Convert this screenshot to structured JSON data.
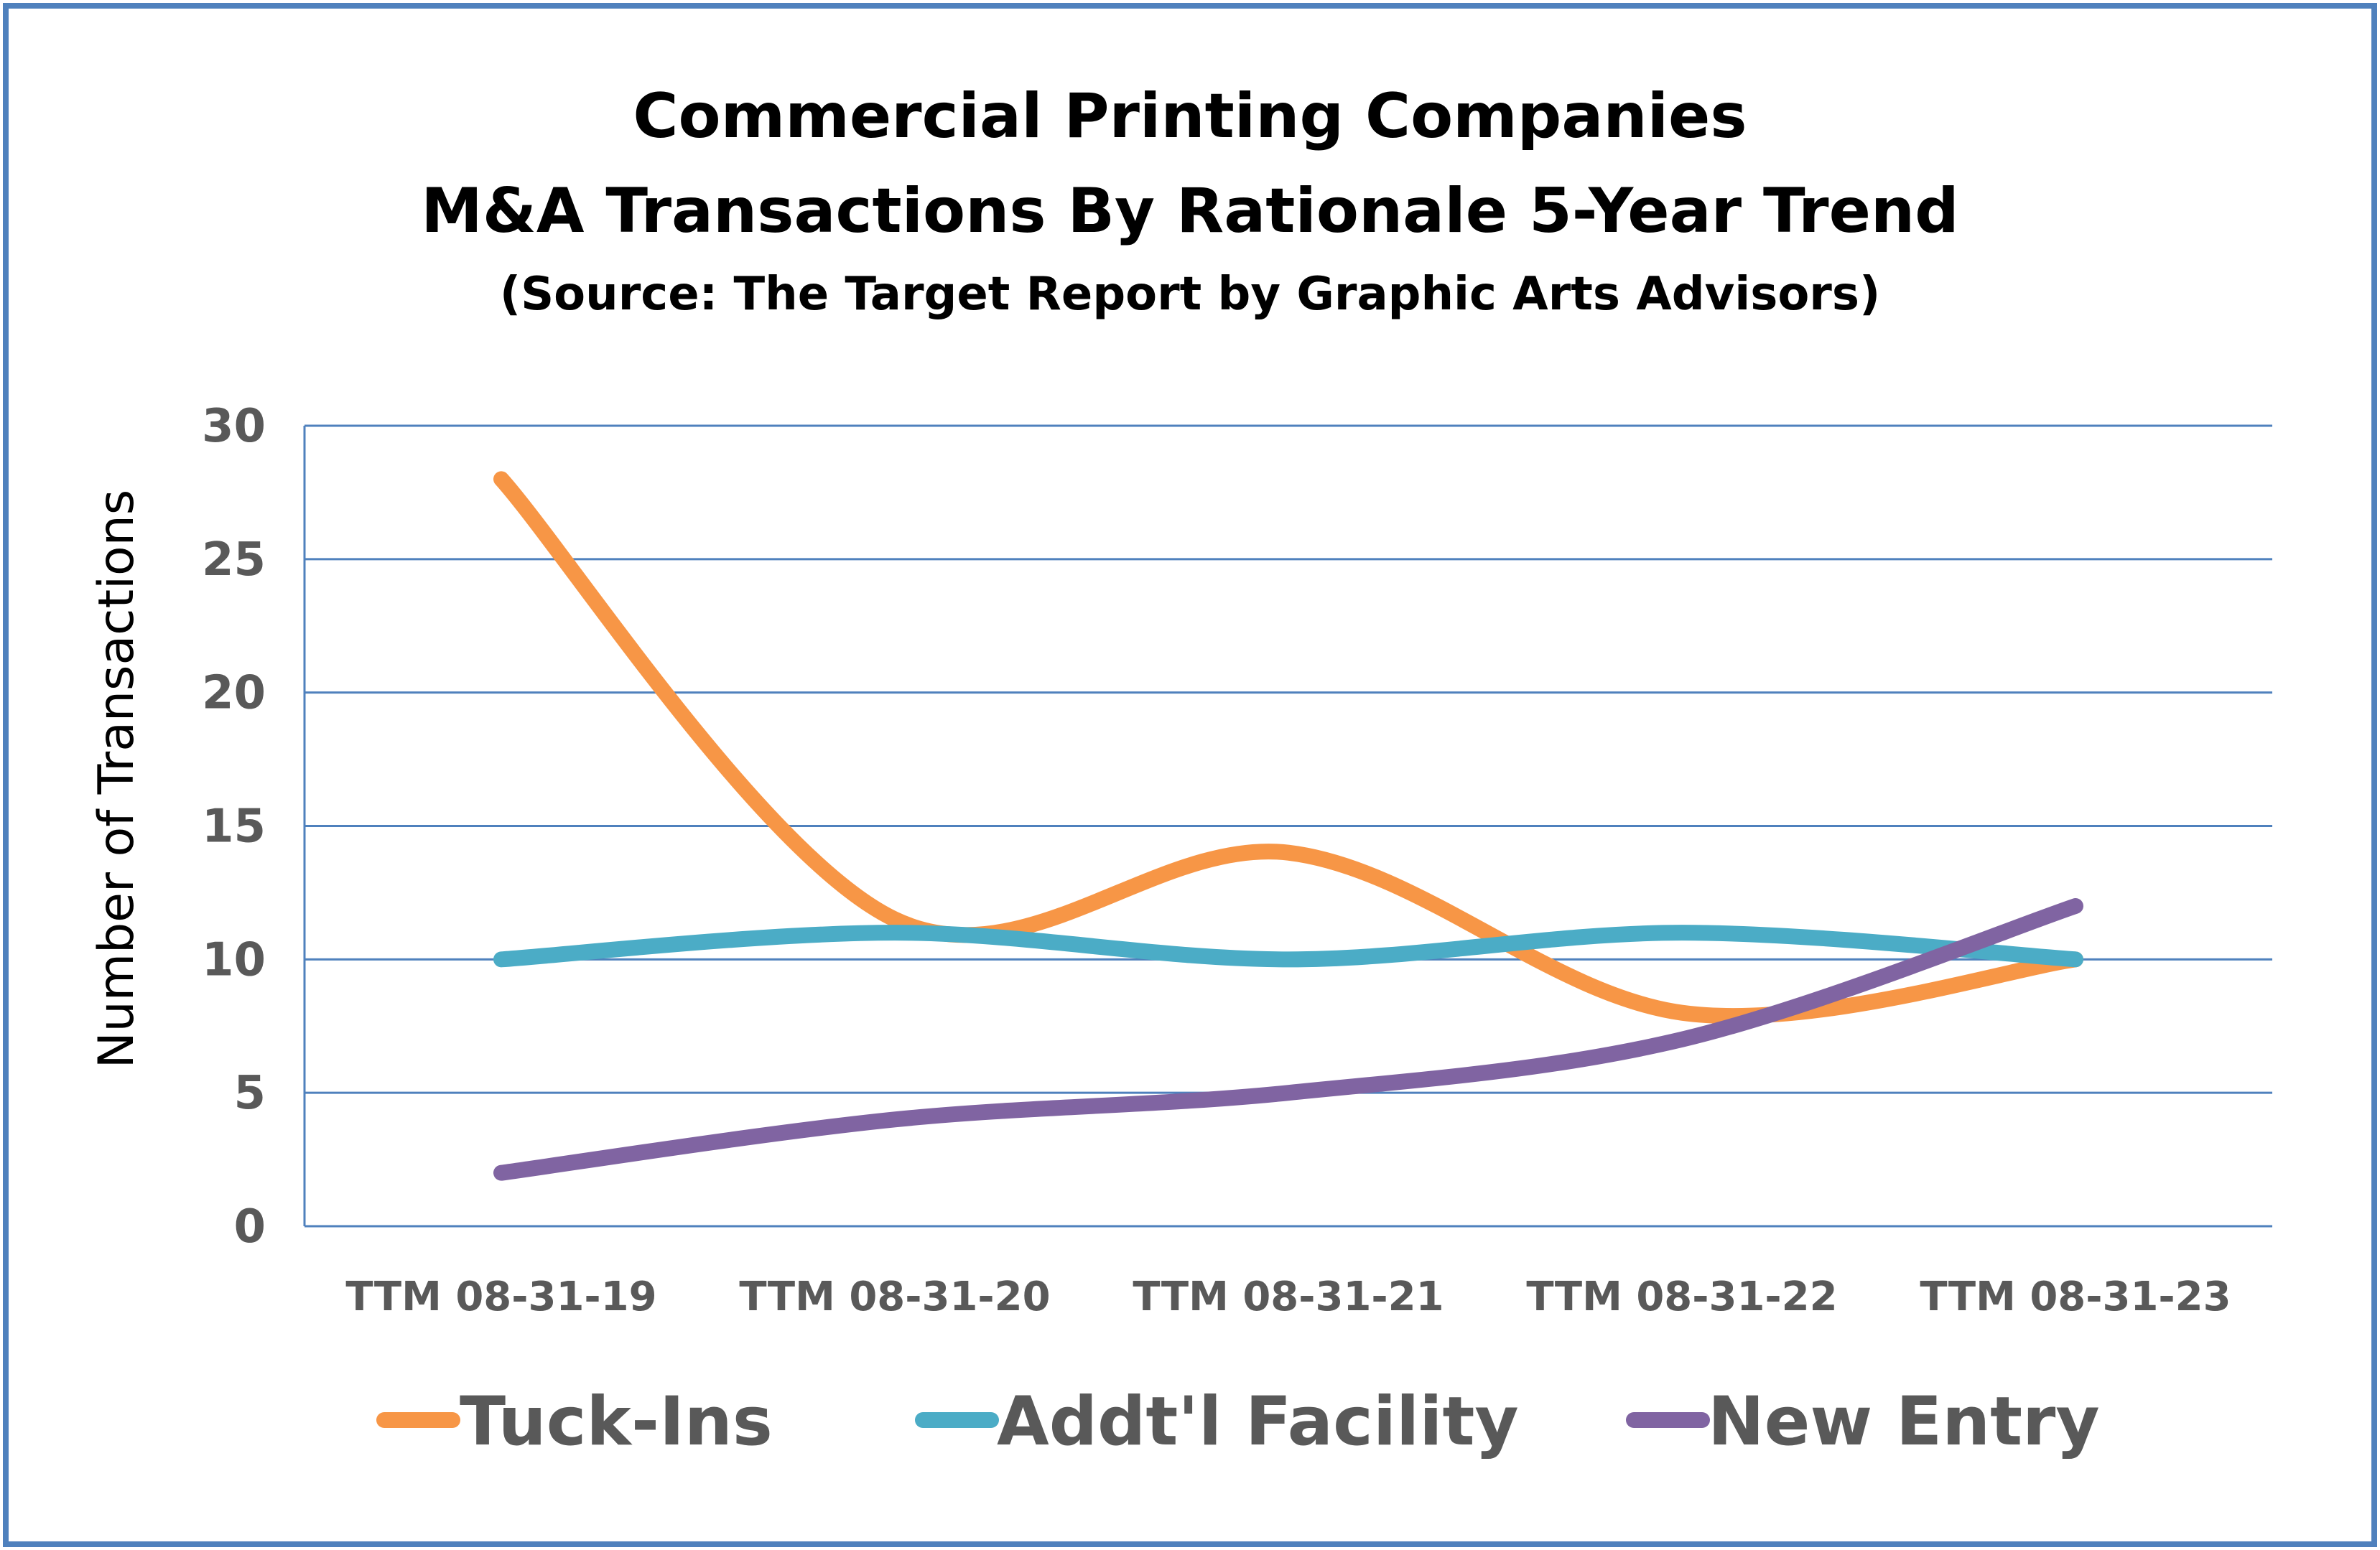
{
  "chart_data": {
    "type": "line",
    "title": "Commercial Printing Companies",
    "subtitle": "M&A Transactions By Rationale 5-Year Trend",
    "source": "(Source: The Target Report by Graphic Arts Advisors)",
    "xlabel": "",
    "ylabel": "Number of Transactions",
    "ylim": [
      0,
      30
    ],
    "yticks": [
      0,
      5,
      10,
      15,
      20,
      25,
      30
    ],
    "grid": true,
    "legend_position": "bottom",
    "categories": [
      "TTM 08-31-19",
      "TTM 08-31-20",
      "TTM 08-31-21",
      "TTM 08-31-22",
      "TTM 08-31-23"
    ],
    "series": [
      {
        "name": "Tuck-Ins",
        "color": "#f79646",
        "values": [
          28,
          11.5,
          14,
          8,
          10
        ]
      },
      {
        "name": "Addt'l Facility",
        "color": "#4bacc6",
        "values": [
          10,
          11,
          10,
          11,
          10
        ]
      },
      {
        "name": "New Entry",
        "color": "#8064a2",
        "values": [
          2,
          4,
          5,
          7,
          12
        ]
      }
    ]
  },
  "colors": {
    "border": "#4f81bd",
    "gridline": "#4f81bd",
    "tick_text": "#595959"
  }
}
